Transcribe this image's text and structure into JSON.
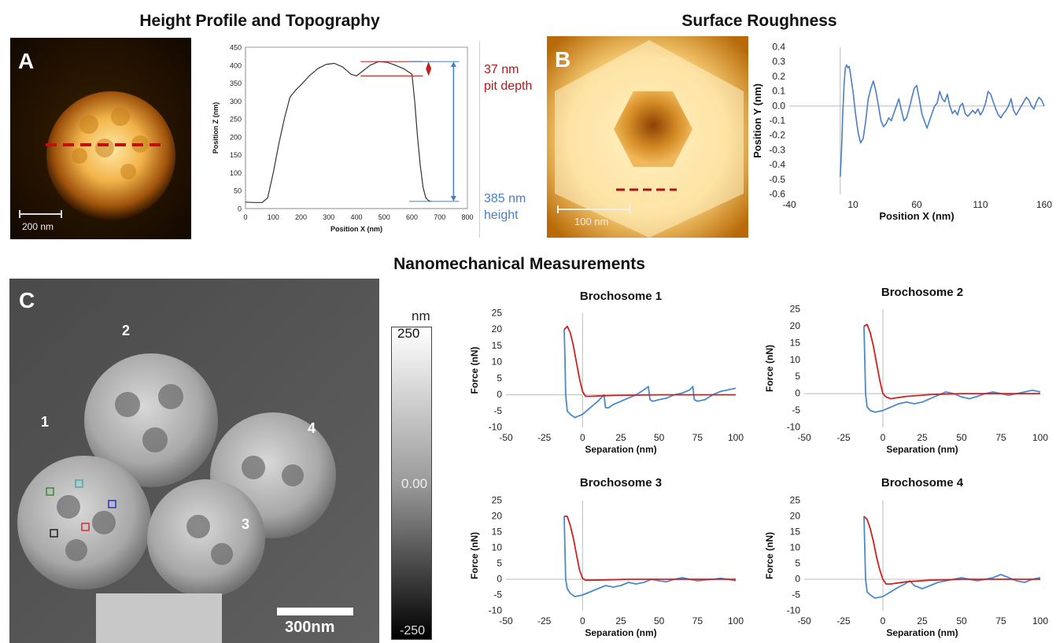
{
  "titles": {
    "top_left": "Height Profile and Topography",
    "top_right": "Surface Roughness",
    "bottom": "Nanomechanical Measurements"
  },
  "panels": {
    "A": {
      "letter": "A",
      "scale": "200 nm"
    },
    "B": {
      "letter": "B",
      "scale": "100 nm"
    },
    "C": {
      "letter": "C",
      "scale": "300nm",
      "labels": [
        "1",
        "2",
        "3",
        "4"
      ],
      "colorbar": {
        "unit": "nm",
        "max": "250",
        "mid": "0.00",
        "min": "-250"
      },
      "marker_colors": [
        "#3a8a3a",
        "#3ab0b0",
        "#3030c8",
        "#d03030",
        "#222222"
      ]
    }
  },
  "annotations": {
    "pit": [
      "37 nm",
      "pit depth"
    ],
    "height": [
      "385 nm",
      "height"
    ],
    "pit_color": "#b01818",
    "height_color": "#4a7ec8"
  },
  "chart_data": [
    {
      "id": "height_profile",
      "type": "line",
      "xlabel": "Position X (nm)",
      "ylabel": "Position Z (nm)",
      "xlim": [
        0,
        800
      ],
      "ylim": [
        0,
        450
      ],
      "xticks": [
        0,
        100,
        200,
        300,
        400,
        500,
        600,
        700,
        800
      ],
      "yticks": [
        0,
        50,
        100,
        150,
        200,
        250,
        300,
        350,
        400,
        450
      ],
      "series": [
        {
          "color": "#333333",
          "x": [
            0,
            30,
            60,
            80,
            100,
            120,
            140,
            160,
            180,
            200,
            230,
            260,
            290,
            320,
            350,
            380,
            400,
            420,
            450,
            480,
            510,
            540,
            570,
            600,
            610,
            620,
            630,
            640,
            650,
            660,
            670
          ],
          "y": [
            18,
            17,
            17,
            30,
            100,
            180,
            250,
            310,
            330,
            345,
            370,
            390,
            402,
            405,
            395,
            375,
            370,
            382,
            400,
            410,
            408,
            400,
            390,
            375,
            300,
            200,
            120,
            60,
            30,
            22,
            20
          ]
        }
      ]
    },
    {
      "id": "surface_roughness",
      "type": "line",
      "xlabel": "Position X (nm)",
      "ylabel": "Position Y (nm)",
      "xlim": [
        -40,
        160
      ],
      "ylim": [
        -0.6,
        0.4
      ],
      "xticks": [
        -40,
        10,
        60,
        110,
        160
      ],
      "yticks": [
        -0.6,
        -0.5,
        -0.4,
        -0.3,
        -0.2,
        -0.1,
        0.0,
        0.1,
        0.2,
        0.3,
        0.4
      ],
      "series": [
        {
          "color": "#4a7ec8",
          "x": [
            0,
            1,
            2,
            3,
            4,
            5,
            6,
            7,
            8,
            10,
            12,
            14,
            16,
            18,
            20,
            22,
            24,
            26,
            28,
            30,
            32,
            34,
            36,
            38,
            40,
            42,
            44,
            46,
            48,
            50,
            52,
            54,
            56,
            58,
            60,
            62,
            64,
            66,
            68,
            70,
            72,
            74,
            76,
            78,
            80,
            82,
            84,
            86,
            88,
            90,
            92,
            94,
            96,
            98,
            100,
            102,
            104,
            106,
            108,
            110,
            112,
            114,
            116,
            118,
            120,
            122,
            124,
            126,
            128,
            130,
            132,
            134,
            136,
            138,
            140,
            142,
            144,
            146,
            148,
            150,
            152,
            154,
            156,
            158,
            160
          ],
          "y": [
            -0.48,
            -0.3,
            -0.05,
            0.15,
            0.26,
            0.28,
            0.26,
            0.27,
            0.22,
            0.1,
            -0.05,
            -0.18,
            -0.25,
            -0.22,
            -0.1,
            0.05,
            0.12,
            0.17,
            0.1,
            0.0,
            -0.1,
            -0.14,
            -0.12,
            -0.08,
            -0.1,
            -0.05,
            0.0,
            0.05,
            -0.03,
            -0.1,
            -0.08,
            -0.02,
            0.05,
            0.12,
            0.14,
            0.05,
            -0.05,
            -0.1,
            -0.15,
            -0.1,
            -0.05,
            0.0,
            0.02,
            0.1,
            0.05,
            0.03,
            0.08,
            0.0,
            -0.05,
            -0.03,
            -0.06,
            0.0,
            0.02,
            -0.05,
            -0.07,
            -0.05,
            -0.03,
            -0.05,
            -0.02,
            -0.06,
            -0.03,
            0.02,
            0.1,
            0.08,
            0.03,
            -0.02,
            -0.06,
            -0.08,
            -0.05,
            -0.03,
            0.0,
            0.05,
            -0.03,
            -0.06,
            -0.03,
            0.0,
            0.03,
            0.06,
            0.04,
            0.0,
            -0.02,
            0.03,
            0.06,
            0.04,
            0.0
          ]
        }
      ]
    },
    {
      "id": "brochosome_1",
      "type": "line",
      "title": "Brochosome 1",
      "xlabel": "Separation (nm)",
      "ylabel": "Force (nN)",
      "xlim": [
        -50,
        100
      ],
      "ylim": [
        -10,
        25
      ],
      "xticks": [
        -50,
        -25,
        0,
        25,
        50,
        75,
        100
      ],
      "yticks": [
        -10,
        -5,
        0,
        5,
        10,
        15,
        20,
        25
      ],
      "series": [
        {
          "color": "#4a8ac8",
          "x": [
            -12,
            -11.5,
            -11,
            -10,
            -8,
            -5,
            0,
            5,
            10,
            14,
            15,
            17,
            20,
            25,
            30,
            35,
            40,
            43,
            44,
            46,
            50,
            55,
            60,
            65,
            70,
            72,
            73,
            75,
            80,
            85,
            90,
            95,
            100
          ],
          "y": [
            20,
            12,
            0,
            -5,
            -6,
            -7,
            -6,
            -4,
            -2,
            0,
            -4,
            -4,
            -3,
            -2,
            -1,
            0,
            1.5,
            2.5,
            -1.5,
            -2,
            -1.5,
            -1,
            0,
            0.5,
            1.5,
            2.5,
            -1.5,
            -2,
            -1.5,
            0,
            1,
            1.5,
            2
          ]
        },
        {
          "color": "#d02020",
          "x": [
            -12,
            -10,
            -8,
            -6,
            -4,
            -2,
            0,
            2,
            5,
            20,
            50,
            75,
            100
          ],
          "y": [
            20,
            21,
            19,
            15,
            10,
            5,
            1,
            -0.5,
            -0.5,
            -0.2,
            0,
            0,
            0
          ]
        }
      ]
    },
    {
      "id": "brochosome_2",
      "type": "line",
      "title": "Brochosome 2",
      "xlabel": "Separation (nm)",
      "ylabel": "Force (nN)",
      "xlim": [
        -50,
        100
      ],
      "ylim": [
        -10,
        25
      ],
      "xticks": [
        -50,
        -25,
        0,
        25,
        50,
        75,
        100
      ],
      "yticks": [
        -10,
        -5,
        0,
        5,
        10,
        15,
        20,
        25
      ],
      "series": [
        {
          "color": "#4a8ac8",
          "x": [
            -12,
            -11.5,
            -11,
            -10,
            -8,
            -5,
            0,
            5,
            10,
            15,
            20,
            25,
            30,
            35,
            40,
            45,
            50,
            55,
            60,
            65,
            70,
            75,
            80,
            85,
            90,
            95,
            100
          ],
          "y": [
            20,
            10,
            0,
            -4,
            -5,
            -5.5,
            -5,
            -4,
            -3,
            -2.5,
            -3,
            -2.5,
            -1.5,
            -0.5,
            0.5,
            0,
            -1,
            -1.5,
            -0.8,
            0,
            0.5,
            0,
            -0.5,
            0,
            0.5,
            1,
            0.5
          ]
        },
        {
          "color": "#d02020",
          "x": [
            -12,
            -10,
            -8,
            -6,
            -4,
            -2,
            0,
            2,
            5,
            15,
            30,
            50,
            75,
            100
          ],
          "y": [
            20,
            20.5,
            18,
            14,
            9,
            4,
            0,
            -1,
            -1.5,
            -0.8,
            -0.3,
            0,
            0,
            0
          ]
        }
      ]
    },
    {
      "id": "brochosome_3",
      "type": "line",
      "title": "Brochosome 3",
      "xlabel": "Separation (nm)",
      "ylabel": "Force (nN)",
      "xlim": [
        -50,
        100
      ],
      "ylim": [
        -10,
        25
      ],
      "xticks": [
        -50,
        -25,
        0,
        25,
        50,
        75,
        100
      ],
      "yticks": [
        -10,
        -5,
        0,
        5,
        10,
        15,
        20,
        25
      ],
      "series": [
        {
          "color": "#4a8ac8",
          "x": [
            -12,
            -11.5,
            -11,
            -10,
            -8,
            -5,
            0,
            5,
            10,
            15,
            20,
            25,
            30,
            35,
            40,
            45,
            50,
            55,
            60,
            65,
            70,
            75,
            80,
            85,
            90,
            95,
            100
          ],
          "y": [
            20,
            10,
            0,
            -3,
            -4.5,
            -5.5,
            -5,
            -4,
            -3,
            -2,
            -2.5,
            -2,
            -1,
            -1.5,
            -1,
            0,
            -0.5,
            -0.8,
            0,
            0.5,
            0,
            -0.5,
            -0.2,
            0,
            0.3,
            0,
            -0.5
          ]
        },
        {
          "color": "#d02020",
          "x": [
            -12,
            -10,
            -8,
            -6,
            -4,
            -2,
            0,
            2,
            5,
            15,
            30,
            50,
            75,
            100
          ],
          "y": [
            20,
            20,
            17,
            13,
            8,
            3,
            0.3,
            -0.3,
            -0.3,
            -0.2,
            0,
            0,
            0,
            0
          ]
        }
      ]
    },
    {
      "id": "brochosome_4",
      "type": "line",
      "title": "Brochosome 4",
      "xlabel": "Separation (nm)",
      "ylabel": "Force (nN)",
      "xlim": [
        -50,
        100
      ],
      "ylim": [
        -10,
        25
      ],
      "xticks": [
        -50,
        -25,
        0,
        25,
        50,
        75,
        100
      ],
      "yticks": [
        -10,
        -5,
        0,
        5,
        10,
        15,
        20,
        25
      ],
      "series": [
        {
          "color": "#4a8ac8",
          "x": [
            -12,
            -11.5,
            -11,
            -10,
            -8,
            -5,
            0,
            5,
            10,
            14,
            17,
            20,
            25,
            30,
            35,
            40,
            45,
            50,
            55,
            60,
            65,
            70,
            75,
            80,
            85,
            90,
            95,
            100
          ],
          "y": [
            20,
            10,
            0,
            -4,
            -5,
            -6,
            -5.5,
            -4,
            -2.5,
            -1.5,
            -0.5,
            -2,
            -3,
            -2,
            -1,
            -0.5,
            0,
            0.5,
            0,
            -0.5,
            0,
            0.5,
            1.5,
            0.5,
            -0.5,
            -1,
            0,
            0.5
          ]
        },
        {
          "color": "#d02020",
          "x": [
            -12,
            -10,
            -8,
            -6,
            -4,
            -2,
            0,
            2,
            5,
            15,
            30,
            50,
            75,
            100
          ],
          "y": [
            20,
            19,
            16,
            12,
            7,
            3,
            0,
            -1.5,
            -1.5,
            -0.8,
            -0.3,
            0,
            0,
            0
          ]
        }
      ]
    }
  ]
}
